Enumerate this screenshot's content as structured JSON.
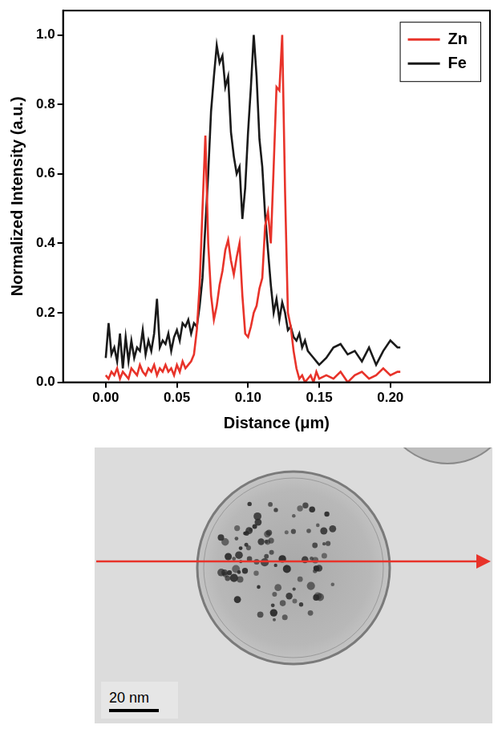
{
  "chart_data": {
    "type": "line",
    "x_label": "Distance (μm)",
    "y_label": "Normalized Intensity (a.u.)",
    "x": [
      0,
      0.002,
      0.004,
      0.006,
      0.008,
      0.01,
      0.012,
      0.014,
      0.016,
      0.018,
      0.02,
      0.022,
      0.024,
      0.026,
      0.028,
      0.03,
      0.032,
      0.034,
      0.036,
      0.038,
      0.04,
      0.042,
      0.044,
      0.046,
      0.048,
      0.05,
      0.052,
      0.054,
      0.056,
      0.058,
      0.06,
      0.062,
      0.064,
      0.066,
      0.068,
      0.07,
      0.072,
      0.074,
      0.076,
      0.078,
      0.08,
      0.082,
      0.084,
      0.086,
      0.088,
      0.09,
      0.092,
      0.094,
      0.096,
      0.098,
      0.1,
      0.102,
      0.104,
      0.106,
      0.108,
      0.11,
      0.112,
      0.114,
      0.116,
      0.118,
      0.12,
      0.122,
      0.124,
      0.126,
      0.128,
      0.13,
      0.132,
      0.134,
      0.136,
      0.138,
      0.14,
      0.142,
      0.144,
      0.146,
      0.148,
      0.15,
      0.155,
      0.16,
      0.165,
      0.17,
      0.175,
      0.18,
      0.185,
      0.19,
      0.195,
      0.2,
      0.205,
      0.207
    ],
    "series": [
      {
        "name": "Zn",
        "color": "#e8332a",
        "values": [
          0.02,
          0.01,
          0.03,
          0.02,
          0.04,
          0.01,
          0.03,
          0.02,
          0.01,
          0.04,
          0.03,
          0.02,
          0.05,
          0.03,
          0.02,
          0.04,
          0.03,
          0.05,
          0.02,
          0.04,
          0.03,
          0.05,
          0.03,
          0.04,
          0.02,
          0.05,
          0.03,
          0.06,
          0.04,
          0.05,
          0.06,
          0.08,
          0.15,
          0.28,
          0.5,
          0.71,
          0.4,
          0.25,
          0.18,
          0.22,
          0.28,
          0.32,
          0.38,
          0.41,
          0.35,
          0.31,
          0.36,
          0.4,
          0.25,
          0.14,
          0.13,
          0.16,
          0.2,
          0.22,
          0.27,
          0.3,
          0.45,
          0.49,
          0.4,
          0.62,
          0.85,
          0.84,
          1.0,
          0.55,
          0.2,
          0.16,
          0.09,
          0.04,
          0.01,
          0.02,
          0.0,
          0.01,
          0.02,
          0.0,
          0.03,
          0.01,
          0.02,
          0.01,
          0.03,
          0.0,
          0.02,
          0.03,
          0.01,
          0.02,
          0.04,
          0.02,
          0.03,
          0.03
        ]
      },
      {
        "name": "Fe",
        "color": "#1a1a1a",
        "values": [
          0.07,
          0.17,
          0.08,
          0.1,
          0.06,
          0.14,
          0.04,
          0.13,
          0.06,
          0.12,
          0.07,
          0.1,
          0.09,
          0.15,
          0.08,
          0.12,
          0.09,
          0.14,
          0.24,
          0.1,
          0.12,
          0.11,
          0.14,
          0.09,
          0.13,
          0.15,
          0.12,
          0.17,
          0.16,
          0.18,
          0.14,
          0.17,
          0.16,
          0.22,
          0.3,
          0.45,
          0.6,
          0.78,
          0.88,
          0.97,
          0.92,
          0.94,
          0.85,
          0.88,
          0.72,
          0.65,
          0.6,
          0.62,
          0.47,
          0.56,
          0.72,
          0.85,
          1.0,
          0.88,
          0.7,
          0.62,
          0.48,
          0.38,
          0.28,
          0.2,
          0.24,
          0.18,
          0.23,
          0.2,
          0.15,
          0.16,
          0.13,
          0.12,
          0.14,
          0.1,
          0.12,
          0.09,
          0.08,
          0.07,
          0.06,
          0.05,
          0.07,
          0.1,
          0.11,
          0.08,
          0.09,
          0.06,
          0.1,
          0.05,
          0.09,
          0.12,
          0.1,
          0.1
        ]
      }
    ],
    "xlim": [
      -0.03,
      0.27
    ],
    "xticks": [
      {
        "value": 0,
        "label": "0.00"
      },
      {
        "value": 0.05,
        "label": "0.05"
      },
      {
        "value": 0.1,
        "label": "0.10"
      },
      {
        "value": 0.15,
        "label": "0.15"
      },
      {
        "value": 0.2,
        "label": "0.20"
      }
    ],
    "ylim": [
      0,
      1.07
    ],
    "yticks": [
      {
        "value": 0,
        "label": "0.0"
      },
      {
        "value": 0.2,
        "label": "0.2"
      },
      {
        "value": 0.4,
        "label": "0.4"
      },
      {
        "value": 0.6,
        "label": "0.6"
      },
      {
        "value": 0.8,
        "label": "0.8"
      },
      {
        "value": 1.0,
        "label": "1.0"
      }
    ],
    "grid": false,
    "legend": "upper right",
    "scale_bar": "20 nm"
  }
}
